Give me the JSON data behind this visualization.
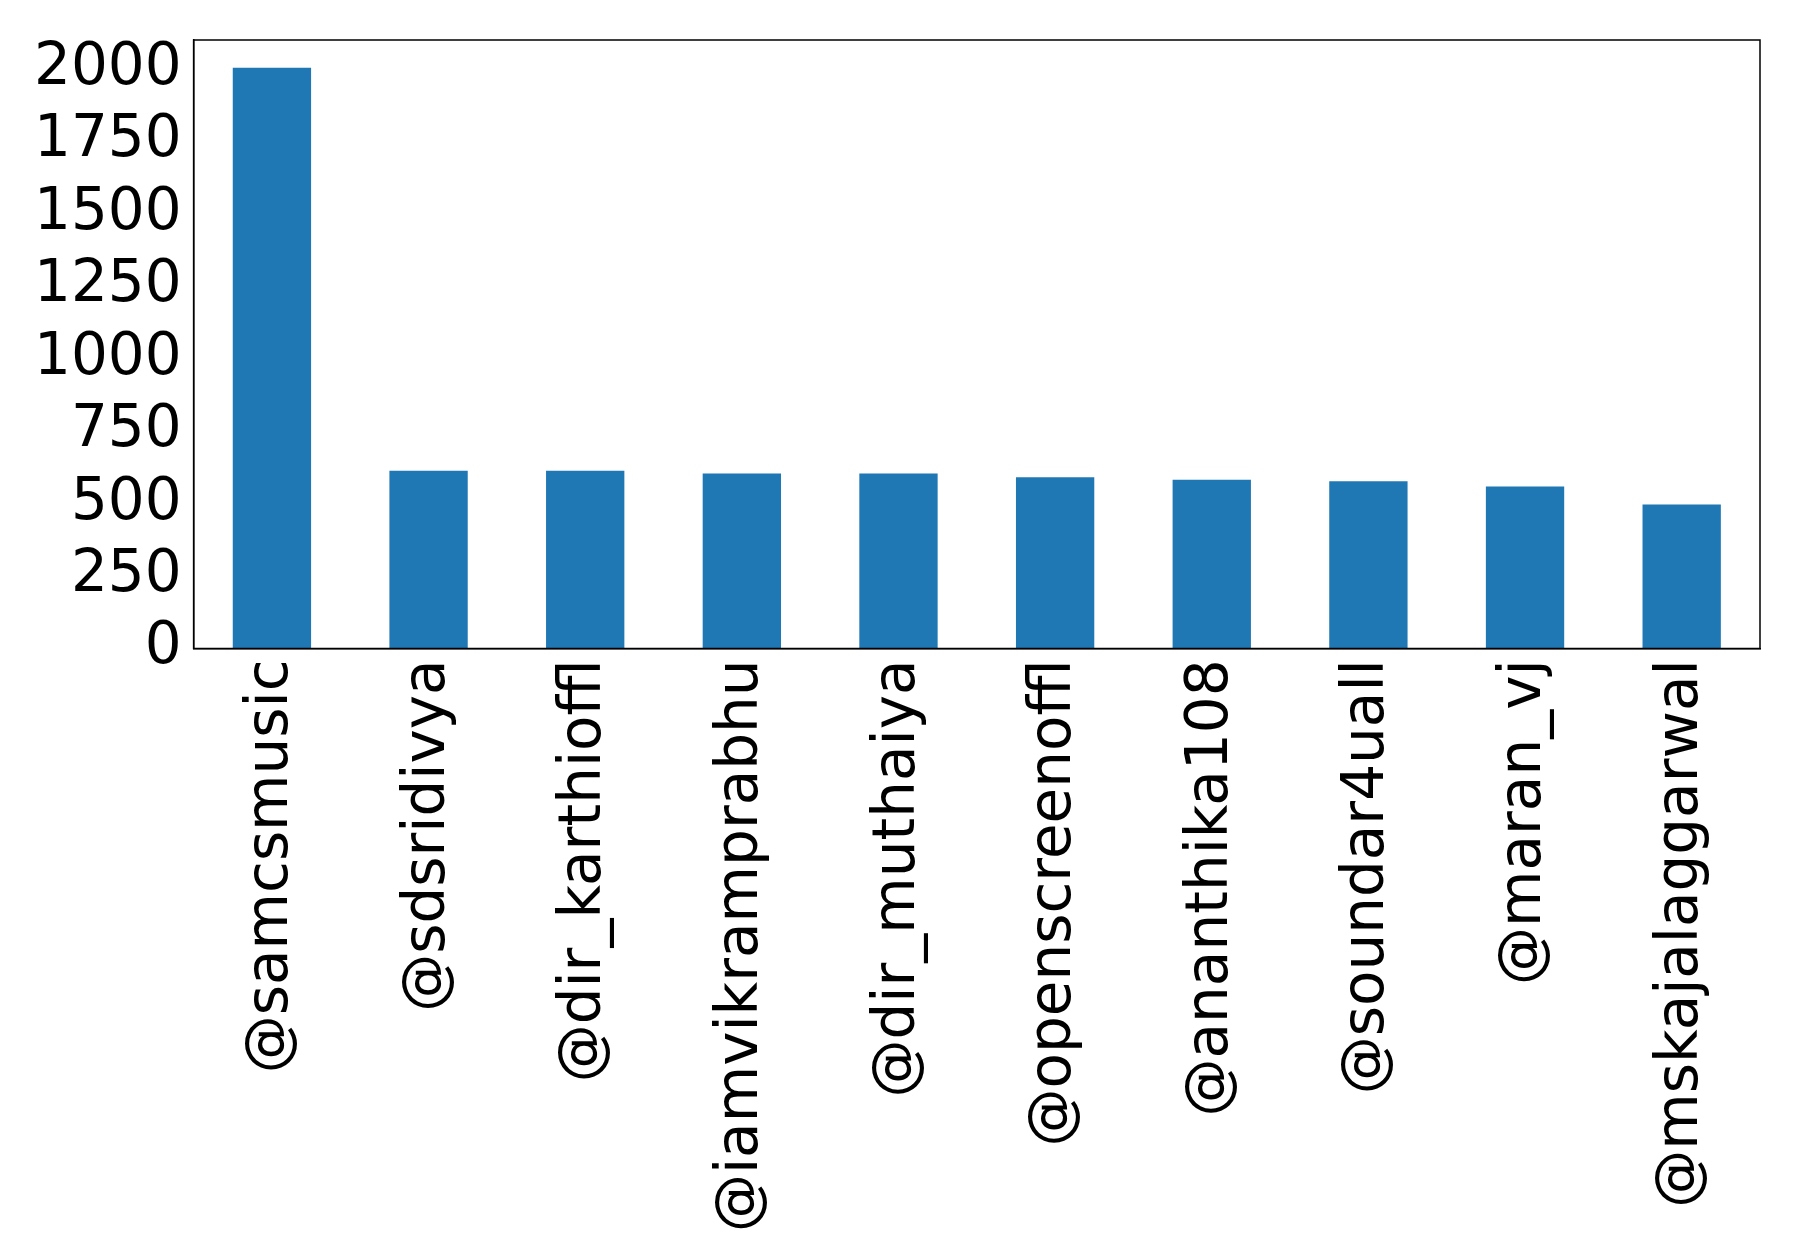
{
  "chart_data": {
    "type": "bar",
    "categories": [
      "@samcsmusic",
      "@sdsridivya",
      "@dir_karthioffl",
      "@iamvikramprabhu",
      "@dir_muthaiya",
      "@openscreenoffl",
      "@ananthika108",
      "@soundar4uall",
      "@maran_vj",
      "@mskajalaggarwal"
    ],
    "values": [
      2004,
      613,
      613,
      604,
      604,
      591,
      582,
      577,
      559,
      497
    ],
    "color": "#1f77b4",
    "ylim": [
      0,
      2100
    ],
    "yticks": [
      0,
      250,
      500,
      750,
      1000,
      1250,
      1500,
      1750,
      2000
    ],
    "grid": false,
    "legend": false
  }
}
